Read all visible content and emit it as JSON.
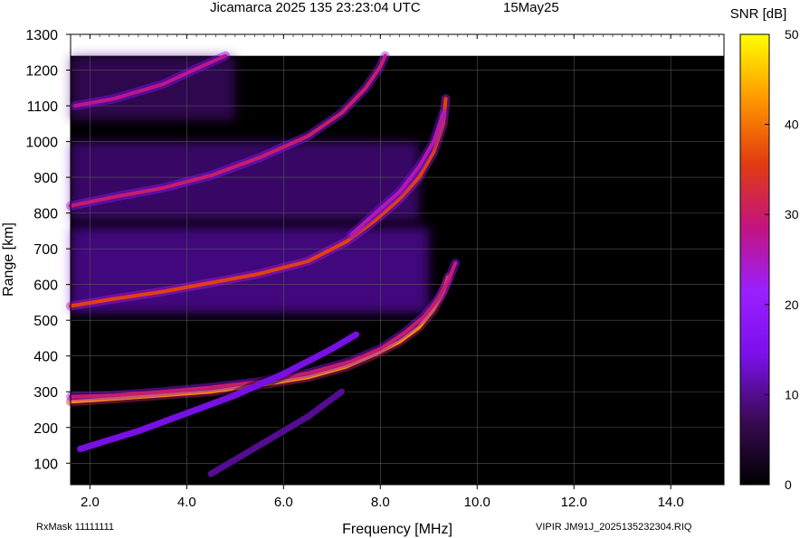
{
  "header": {
    "title": "Jicamarca 2025 135 23:23:04 UTC",
    "date": "15May25"
  },
  "footer": {
    "rxmask": "RxMask 11111111",
    "filename": "VIPIR  JM91J_2025135232304.RIQ"
  },
  "colorbar": {
    "label": "SNR [dB]",
    "ticks": [
      "50",
      "40",
      "30",
      "20",
      "10",
      "0"
    ],
    "range": [
      0,
      50
    ],
    "colors": [
      "#000000",
      "#3a0a55",
      "#7a10e8",
      "#9a20ff",
      "#c21480",
      "#e23c10",
      "#ff9800",
      "#ffff00"
    ]
  },
  "chart_data": {
    "type": "heatmap",
    "title": "Jicamarca 2025 135 23:23:04 UTC",
    "xlabel": "Frequency [MHz]",
    "ylabel": "Range [km]",
    "xlim": [
      1.6,
      15.1
    ],
    "ylim": [
      40,
      1300
    ],
    "xticks": [
      "2.0",
      "4.0",
      "6.0",
      "8.0",
      "10.0",
      "12.0",
      "14.0"
    ],
    "yticks": [
      "100",
      "200",
      "300",
      "400",
      "500",
      "600",
      "700",
      "800",
      "900",
      "1000",
      "1100",
      "1200",
      "1300"
    ],
    "grid": true,
    "data_top_km": 1240,
    "traces": [
      {
        "name": "",
        "snr_db": 42,
        "points": [
          [
            1.6,
            272
          ],
          [
            2.5,
            280
          ],
          [
            3.5,
            290
          ],
          [
            4.5,
            300
          ],
          [
            5.5,
            318
          ],
          [
            6.5,
            340
          ],
          [
            7.3,
            370
          ],
          [
            7.9,
            405
          ],
          [
            8.4,
            440
          ],
          [
            8.8,
            480
          ],
          [
            9.1,
            530
          ],
          [
            9.3,
            580
          ],
          [
            9.4,
            620
          ]
        ]
      },
      {
        "name": "",
        "snr_db": 30,
        "points": [
          [
            1.6,
            286
          ],
          [
            2.5,
            290
          ],
          [
            3.5,
            300
          ],
          [
            4.5,
            312
          ],
          [
            5.5,
            328
          ],
          [
            6.5,
            352
          ],
          [
            7.4,
            385
          ],
          [
            8.0,
            420
          ],
          [
            8.5,
            465
          ],
          [
            8.9,
            510
          ],
          [
            9.2,
            560
          ],
          [
            9.4,
            610
          ],
          [
            9.55,
            660
          ]
        ]
      },
      {
        "name": "",
        "snr_db": 36,
        "points": [
          [
            1.6,
            540
          ],
          [
            2.5,
            560
          ],
          [
            3.5,
            580
          ],
          [
            4.5,
            605
          ],
          [
            5.5,
            630
          ],
          [
            6.5,
            665
          ],
          [
            7.3,
            720
          ],
          [
            7.9,
            780
          ],
          [
            8.4,
            840
          ],
          [
            8.8,
            900
          ],
          [
            9.1,
            970
          ],
          [
            9.3,
            1050
          ],
          [
            9.35,
            1120
          ]
        ]
      },
      {
        "name": "",
        "snr_db": 26,
        "points": [
          [
            7.4,
            740
          ],
          [
            7.9,
            800
          ],
          [
            8.4,
            860
          ],
          [
            8.8,
            930
          ],
          [
            9.1,
            1000
          ],
          [
            9.3,
            1080
          ]
        ]
      },
      {
        "name": "",
        "snr_db": 30,
        "points": [
          [
            1.6,
            820
          ],
          [
            2.5,
            845
          ],
          [
            3.5,
            870
          ],
          [
            4.5,
            905
          ],
          [
            5.5,
            955
          ],
          [
            6.5,
            1015
          ],
          [
            7.2,
            1080
          ],
          [
            7.7,
            1150
          ],
          [
            8.0,
            1210
          ],
          [
            8.1,
            1240
          ]
        ]
      },
      {
        "name": "",
        "snr_db": 28,
        "points": [
          [
            1.7,
            1100
          ],
          [
            2.5,
            1120
          ],
          [
            3.5,
            1160
          ],
          [
            4.3,
            1210
          ],
          [
            4.8,
            1240
          ]
        ]
      },
      {
        "name": "",
        "snr_db": 14,
        "points": [
          [
            1.8,
            140
          ],
          [
            3.0,
            190
          ],
          [
            4.0,
            240
          ],
          [
            5.0,
            290
          ],
          [
            6.0,
            350
          ],
          [
            7.0,
            420
          ],
          [
            7.5,
            460
          ]
        ]
      },
      {
        "name": "",
        "snr_db": 10,
        "points": [
          [
            4.5,
            70
          ],
          [
            5.5,
            150
          ],
          [
            6.5,
            230
          ],
          [
            7.2,
            300
          ]
        ]
      }
    ],
    "diffuse_regions": [
      {
        "snr_db": 14,
        "freq": [
          1.6,
          9.0
        ],
        "range": [
          520,
          760
        ]
      },
      {
        "snr_db": 12,
        "freq": [
          1.6,
          8.8
        ],
        "range": [
          780,
          1000
        ]
      },
      {
        "snr_db": 10,
        "freq": [
          1.6,
          5.0
        ],
        "range": [
          1060,
          1240
        ]
      }
    ]
  }
}
